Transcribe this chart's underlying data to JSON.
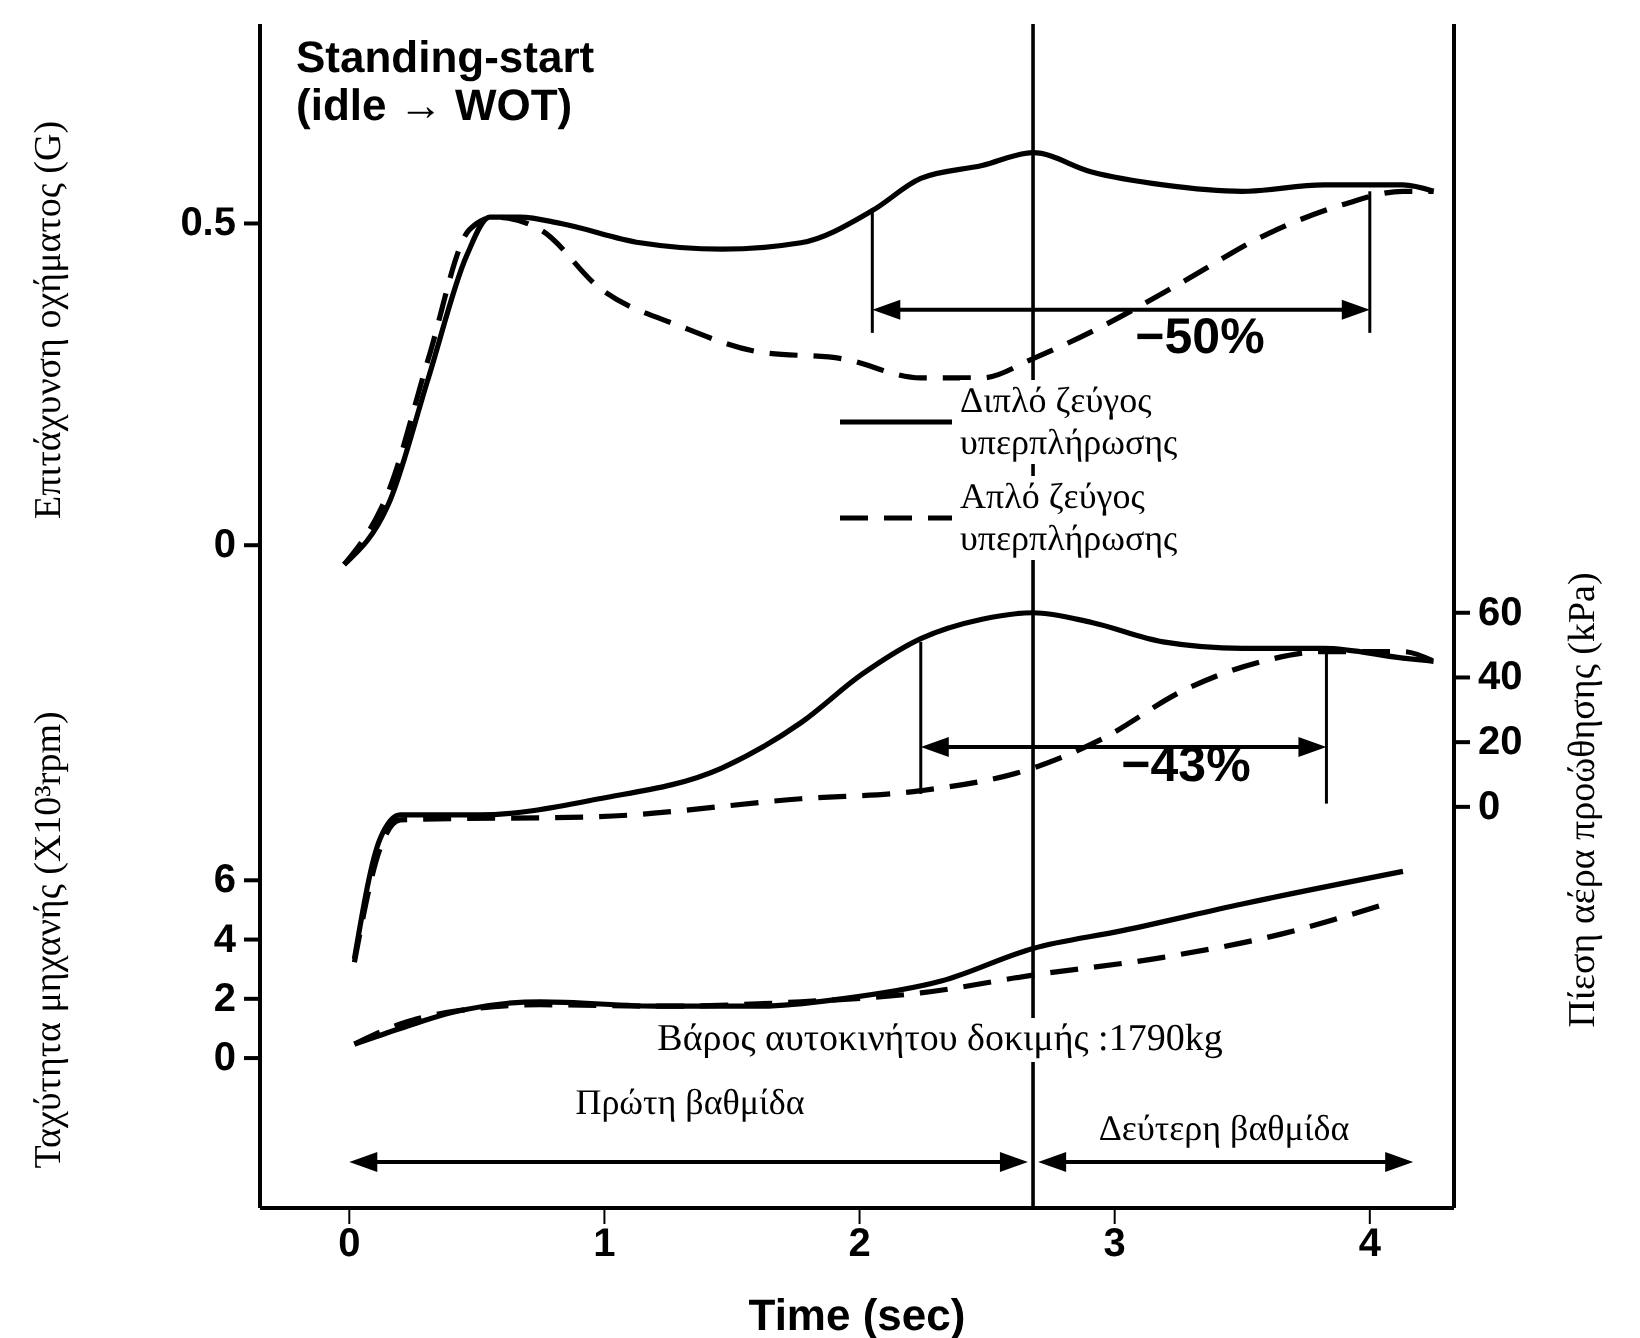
{
  "chart_data": {
    "type": "line",
    "title": "Standing-start",
    "subtitle": "(idle → WOT)",
    "xlabel": "Time (sec)",
    "ylabel": "Επιτάχυνση οχήματος (G)",
    "y2label": "Πίεση αέρα προώθησης (kPa)",
    "y3label": "Ταχύτητα μηχανής (X10³rpm)",
    "xlim": [
      -0.35,
      4.33
    ],
    "xticks": [
      0,
      1,
      2,
      3,
      4
    ],
    "ylim": [
      -1.03,
      0.81
    ],
    "yticks": [
      0,
      0.5
    ],
    "y2lim": [
      -124,
      242
    ],
    "y2ticks": [
      0,
      20,
      40,
      60
    ],
    "y3lim": [
      -5.06,
      34.9
    ],
    "y3ticks": [
      0,
      2,
      4,
      6
    ],
    "legend": "top right",
    "ref_lines": [
      {
        "axis": "x",
        "value": 2.68
      }
    ],
    "annotations": [
      "−50%",
      "−43%",
      "Βάρος αυτοκινήτου δοκιμής :1790kg",
      "Πρώτη βαθμίδα",
      "Δεύτερη βαθμίδα"
    ],
    "series": [
      {
        "name": "Διπλό ζεύγος υπερπλήρωσης",
        "color": "#000000",
        "line_style": "solid",
        "x": [
          -0.02,
          0.16,
          0.31,
          0.46,
          0.55,
          0.67,
          0.83,
          1.14,
          1.46,
          1.77,
          2.05,
          2.24,
          2.48,
          2.68,
          2.91,
          3.19,
          3.5,
          3.82,
          4.13,
          4.25
        ],
        "values": [
          -0.03,
          0.07,
          0.26,
          0.45,
          0.51,
          0.51,
          0.5,
          0.47,
          0.46,
          0.47,
          0.52,
          0.57,
          0.59,
          0.61,
          0.58,
          0.56,
          0.55,
          0.56,
          0.56,
          0.55
        ]
      },
      {
        "name": "Απλό ζεύγος υπερπλήρωσης",
        "color": "#000000",
        "line_style": "dashed",
        "x": [
          -0.02,
          0.16,
          0.31,
          0.47,
          0.57,
          0.75,
          0.98,
          1.3,
          1.61,
          1.93,
          2.24,
          2.48,
          2.68,
          2.95,
          3.27,
          3.58,
          3.9,
          4.13,
          4.25
        ],
        "values": [
          -0.03,
          0.09,
          0.29,
          0.49,
          0.51,
          0.49,
          0.4,
          0.34,
          0.3,
          0.29,
          0.26,
          0.26,
          0.29,
          0.34,
          0.41,
          0.48,
          0.53,
          0.55,
          0.55
        ]
      },
      {
        "color": "#000000",
        "line_style": "solid",
        "axis": "y2",
        "x": [
          0.02,
          0.12,
          0.2,
          0.51,
          0.98,
          1.46,
          1.77,
          2.01,
          2.24,
          2.48,
          2.68,
          2.91,
          3.19,
          3.5,
          3.82,
          4.13,
          4.25
        ],
        "values": [
          -47,
          -10,
          -2.5,
          -2.5,
          2.5,
          12,
          26,
          41,
          52,
          58,
          60,
          57,
          51,
          49,
          49,
          46,
          45
        ]
      },
      {
        "color": "#000000",
        "line_style": "dashed",
        "axis": "y2",
        "x": [
          0.02,
          0.12,
          0.2,
          0.98,
          1.77,
          2.24,
          2.68,
          2.95,
          3.27,
          3.58,
          3.82,
          4.13,
          4.25
        ],
        "values": [
          -48,
          -13,
          -4,
          -3,
          2.5,
          5,
          12,
          21,
          36,
          45,
          48,
          48,
          45
        ]
      },
      {
        "color": "#000000",
        "line_style": "solid",
        "axis": "y3",
        "x": [
          0.02,
          0.2,
          0.43,
          0.75,
          1.22,
          1.61,
          1.93,
          2.32,
          2.68,
          3.03,
          3.5,
          4.13
        ],
        "values": [
          0.47,
          1.0,
          1.6,
          1.9,
          1.75,
          1.75,
          2.0,
          2.6,
          3.7,
          4.3,
          5.2,
          6.3
        ]
      },
      {
        "color": "#000000",
        "line_style": "dashed",
        "axis": "y3",
        "x": [
          0.02,
          0.2,
          0.43,
          0.75,
          1.22,
          1.77,
          2.24,
          2.68,
          3.19,
          3.66,
          4.06
        ],
        "values": [
          0.47,
          1.15,
          1.6,
          1.8,
          1.75,
          1.9,
          2.2,
          2.8,
          3.4,
          4.2,
          5.2
        ]
      }
    ]
  }
}
